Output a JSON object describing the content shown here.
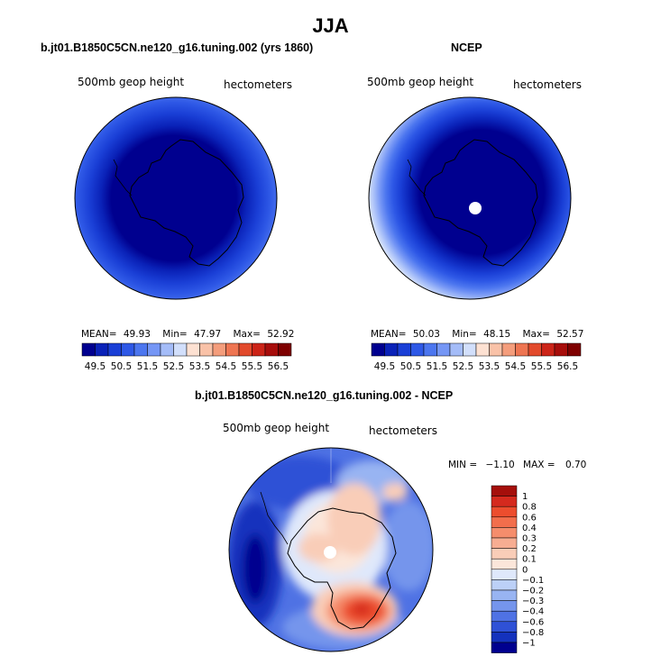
{
  "title": "JJA",
  "chart_data": [
    {
      "type": "heatmap",
      "projection": "south-polar-stereographic",
      "title": "b.jt01.B1850C5CN.ne120_g16.tuning.002 (yrs 1860)",
      "variable_label": "500mb geop height",
      "units_label": "hectometers",
      "stats": {
        "mean_label": "MEAN=",
        "mean": "49.93",
        "min_label": "Min=",
        "min": "47.97",
        "max_label": "Max=",
        "max": "52.92"
      },
      "colorbar_levels": [
        "49.5",
        "50.5",
        "51.5",
        "52.5",
        "53.5",
        "54.5",
        "55.5",
        "56.5"
      ],
      "colorbar_colors": [
        "#00008f",
        "#0a22b8",
        "#1a3fd6",
        "#2e58e6",
        "#4c76ef",
        "#7596f5",
        "#a4bcf8",
        "#d2dffb",
        "#fde1d2",
        "#f9c2a8",
        "#f49d7c",
        "#ee7552",
        "#e24a2c",
        "#cc2418",
        "#a70d0b",
        "#7e0000"
      ],
      "field_min": 47.97,
      "field_max": 52.92
    },
    {
      "type": "heatmap",
      "projection": "south-polar-stereographic",
      "title": "NCEP",
      "variable_label": "500mb geop height",
      "units_label": "hectometers",
      "stats": {
        "mean_label": "MEAN=",
        "mean": "50.03",
        "min_label": "Min=",
        "min": "48.15",
        "max_label": "Max=",
        "max": "52.57"
      },
      "colorbar_levels": [
        "49.5",
        "50.5",
        "51.5",
        "52.5",
        "53.5",
        "54.5",
        "55.5",
        "56.5"
      ],
      "colorbar_colors": [
        "#00008f",
        "#0a22b8",
        "#1a3fd6",
        "#2e58e6",
        "#4c76ef",
        "#7596f5",
        "#a4bcf8",
        "#d2dffb",
        "#fde1d2",
        "#f9c2a8",
        "#f49d7c",
        "#ee7552",
        "#e24a2c",
        "#cc2418",
        "#a70d0b",
        "#7e0000"
      ],
      "field_min": 48.15,
      "field_max": 52.57
    },
    {
      "type": "heatmap",
      "projection": "south-polar-stereographic",
      "title": "b.jt01.B1850C5CN.ne120_g16.tuning.002 - NCEP",
      "variable_label": "500mb geop height",
      "units_label": "hectometers",
      "stats": {
        "min_label": "MIN =",
        "min": "−1.10",
        "max_label": "MAX =",
        "max": "0.70"
      },
      "colorbar_levels": [
        "1",
        "0.8",
        "0.6",
        "0.4",
        "0.3",
        "0.2",
        "0.1",
        "0",
        "−0.1",
        "−0.2",
        "−0.3",
        "−0.4",
        "−0.6",
        "−0.8",
        "−1"
      ],
      "colorbar_colors": [
        "#a50f0b",
        "#d52a1e",
        "#ec4d2e",
        "#f26e4c",
        "#f58d6c",
        "#f7ad92",
        "#f9cdb8",
        "#fbe6da",
        "#dfe8fb",
        "#bcd0f7",
        "#98b4f2",
        "#7595ec",
        "#4f72e4",
        "#2f51d6",
        "#1432bd",
        "#00008f"
      ],
      "field_min": -1.1,
      "field_max": 0.7
    }
  ]
}
